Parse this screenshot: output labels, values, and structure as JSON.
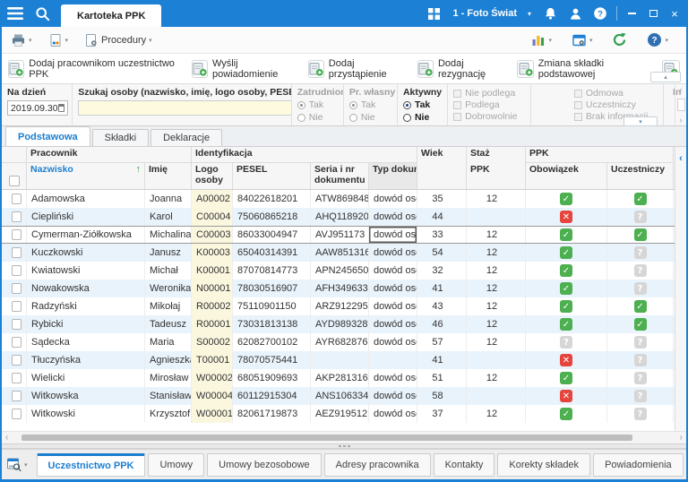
{
  "colors": {
    "titlebar": "#1c80d4",
    "accent": "#1c7fd0",
    "check_green": "#4caf50",
    "cross_red": "#e5453d",
    "unknown_gray": "#d6d6d6",
    "row_alt": "#e9f3fb",
    "logo_column_bg": "#fbf7df",
    "search_field_bg": "#fdfadf"
  },
  "icons": {
    "status": {
      "check": "✓",
      "x": "✕",
      "question": "?"
    },
    "sort_asc": "↑",
    "chevron_down": "▾",
    "chevron_up": "▴",
    "scroll_left": "‹",
    "scroll_right": "›",
    "panel_collapse_left": "‹",
    "close": "×"
  },
  "titlebar": {
    "tab": "Kartoteka PPK",
    "company": "1 - Foto Świat"
  },
  "toolbar": {
    "procedury": "Procedury"
  },
  "actions": {
    "items": [
      "Dodaj pracownikom uczestnictwo PPK",
      "Wyślij powiadomienie",
      "Dodaj przystąpienie",
      "Dodaj rezygnację",
      "Zmiana składki podstawowej"
    ]
  },
  "filters": {
    "na_dzien": {
      "label": "Na dzień",
      "value": "2019.09.30"
    },
    "search": {
      "label": "Szukaj osoby (nazwisko, imię, logo osoby, PESEL)",
      "value": ""
    },
    "zatrudniony": {
      "label": "Zatrudniony",
      "tak": "Tak",
      "nie": "Nie",
      "selected": "Tak",
      "enabled": false
    },
    "pr_wlasny": {
      "label": "Pr. własny",
      "tak": "Tak",
      "nie": "Nie",
      "selected": "Tak",
      "enabled": false
    },
    "aktywny": {
      "label": "Aktywny",
      "tak": "Tak",
      "nie": "Nie",
      "selected": "Tak",
      "enabled": true
    },
    "podleganie": [
      "Nie podlega",
      "Podlega",
      "Dobrowolnie"
    ],
    "uczestnictwo": [
      "Odmowa",
      "Uczestniczy",
      "Brak informacji"
    ],
    "truncated_group": "In"
  },
  "tabs": {
    "items": [
      "Podstawowa",
      "Składki",
      "Deklaracje"
    ],
    "active": "Podstawowa"
  },
  "table": {
    "header": {
      "group_pracownik": "Pracownik",
      "group_identyfikacja": "Identyfikacja",
      "col_wiek": "Wiek",
      "col_staz_l1": "Staż",
      "col_staz_l2": "PPK",
      "group_ppk": "PPK",
      "col_nazwisko": "Nazwisko",
      "col_imie": "Imię",
      "col_logo": "Logo osoby",
      "col_pesel": "PESEL",
      "col_seria": "Seria i nr dokumentu",
      "col_typ": "Typ dokum",
      "col_obowiazek": "Obowiązek",
      "col_uczestniczy": "Uczestniczy"
    },
    "rows": [
      {
        "nazwisko": "Adamowska",
        "imie": "Joanna",
        "logo": "A00002",
        "pesel": "84022618201",
        "seria": "ATW869848",
        "typ": "dowód osc",
        "wiek": "35",
        "staz": "12",
        "obowiazek": "check",
        "uczestniczy": "check",
        "selected": false
      },
      {
        "nazwisko": "Ciepliński",
        "imie": "Karol",
        "logo": "C00004",
        "pesel": "75060865218",
        "seria": "AHQ118920",
        "typ": "dowód osc",
        "wiek": "44",
        "staz": "",
        "obowiazek": "x",
        "uczestniczy": "question",
        "selected": false
      },
      {
        "nazwisko": "Cymerman-Ziółkowska",
        "imie": "Michalina",
        "logo": "C00003",
        "pesel": "86033004947",
        "seria": "AVJ951173",
        "typ": "dowód osc",
        "wiek": "33",
        "staz": "12",
        "obowiazek": "check",
        "uczestniczy": "check",
        "selected": true
      },
      {
        "nazwisko": "Kuczkowski",
        "imie": "Janusz",
        "logo": "K00003",
        "pesel": "65040314391",
        "seria": "AAW851316",
        "typ": "dowód osc",
        "wiek": "54",
        "staz": "12",
        "obowiazek": "check",
        "uczestniczy": "question",
        "selected": false
      },
      {
        "nazwisko": "Kwiatowski",
        "imie": "Michał",
        "logo": "K00001",
        "pesel": "87070814773",
        "seria": "APN245650",
        "typ": "dowód osc",
        "wiek": "32",
        "staz": "12",
        "obowiazek": "check",
        "uczestniczy": "question",
        "selected": false
      },
      {
        "nazwisko": "Nowakowska",
        "imie": "Weronika",
        "logo": "N00001",
        "pesel": "78030516907",
        "seria": "AFH349633",
        "typ": "dowód osc",
        "wiek": "41",
        "staz": "12",
        "obowiazek": "check",
        "uczestniczy": "question",
        "selected": false
      },
      {
        "nazwisko": "Radzyński",
        "imie": "Mikołaj",
        "logo": "R00002",
        "pesel": "75110901150",
        "seria": "ARZ912295",
        "typ": "dowód osc",
        "wiek": "43",
        "staz": "12",
        "obowiazek": "check",
        "uczestniczy": "check",
        "selected": false
      },
      {
        "nazwisko": "Rybicki",
        "imie": "Tadeusz",
        "logo": "R00001",
        "pesel": "73031813138",
        "seria": "AYD989328",
        "typ": "dowód osc",
        "wiek": "46",
        "staz": "12",
        "obowiazek": "check",
        "uczestniczy": "check",
        "selected": false
      },
      {
        "nazwisko": "Sądecka",
        "imie": "Maria",
        "logo": "S00002",
        "pesel": "62082700102",
        "seria": "AYR682876",
        "typ": "dowód osc",
        "wiek": "57",
        "staz": "12",
        "obowiazek": "question",
        "uczestniczy": "question",
        "selected": false
      },
      {
        "nazwisko": "Tłuczyńska",
        "imie": "Agnieszka",
        "logo": "T00001",
        "pesel": "78070575441",
        "seria": "",
        "typ": "",
        "wiek": "41",
        "staz": "",
        "obowiazek": "x",
        "uczestniczy": "question",
        "selected": false
      },
      {
        "nazwisko": "Wielicki",
        "imie": "Mirosław",
        "logo": "W00002",
        "pesel": "68051909693",
        "seria": "AKP281316",
        "typ": "dowód osc",
        "wiek": "51",
        "staz": "12",
        "obowiazek": "check",
        "uczestniczy": "question",
        "selected": false
      },
      {
        "nazwisko": "Witkowska",
        "imie": "Stanisława",
        "logo": "W00004",
        "pesel": "60112915304",
        "seria": "ANS106334",
        "typ": "dowód osc",
        "wiek": "58",
        "staz": "",
        "obowiazek": "x",
        "uczestniczy": "question",
        "selected": false
      },
      {
        "nazwisko": "Witkowski",
        "imie": "Krzysztof",
        "logo": "W00001",
        "pesel": "82061719873",
        "seria": "AEZ919512",
        "typ": "dowód osc",
        "wiek": "37",
        "staz": "12",
        "obowiazek": "check",
        "uczestniczy": "question",
        "selected": false
      }
    ]
  },
  "bottom_tabs": {
    "items": [
      "Uczestnictwo PPK",
      "Umowy",
      "Umowy bezosobowe",
      "Adresy pracownika",
      "Kontakty",
      "Korekty składek",
      "Powiadomienia"
    ],
    "active": "Uczestnictwo PPK"
  }
}
